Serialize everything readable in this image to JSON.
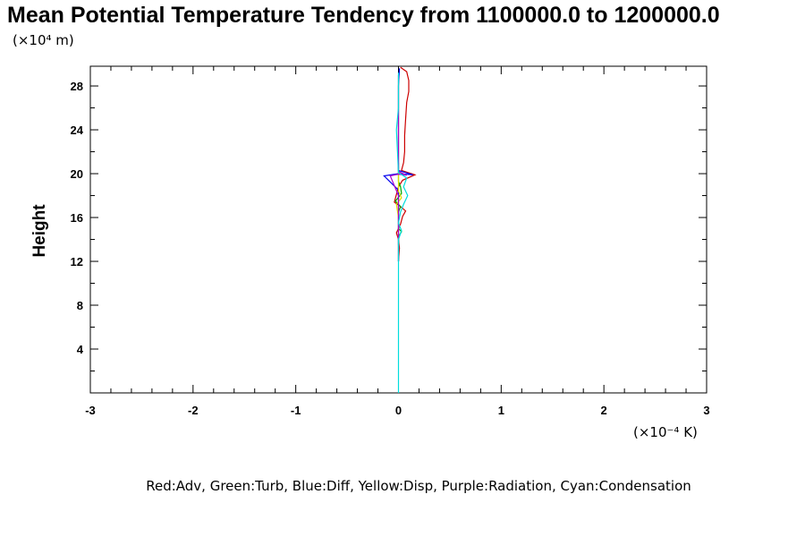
{
  "chart_data": {
    "type": "line",
    "title": "Mean Potential Temperature Tendency from 1100000.0 to 1200000.0",
    "xlabel": "",
    "ylabel": "Height",
    "x_unit_label": "(×10⁻⁴ K)",
    "y_unit_label": "(×10⁴ m)",
    "xlim": [
      -3,
      3
    ],
    "ylim": [
      0,
      29.8
    ],
    "x_ticks": [
      -3,
      -2,
      -1,
      0,
      1,
      2,
      3
    ],
    "x_tick_labels": [
      "-3",
      "-2",
      "-1",
      "0",
      "1",
      "2",
      "3"
    ],
    "y_ticks": [
      4,
      8,
      12,
      16,
      20,
      24,
      28
    ],
    "y_tick_labels": [
      "4",
      "8",
      "12",
      "16",
      "20",
      "24",
      "28"
    ],
    "grid": false,
    "legend_text": "Red:Adv, Green:Turb, Blue:Diff, Yellow:Disp, Purple:Radiation, Cyan:Condensation",
    "series": [
      {
        "name": "Adv",
        "color": "#cc0000",
        "points": [
          [
            0.0,
            12.0
          ],
          [
            0.01,
            13.2
          ],
          [
            0.0,
            14.0
          ],
          [
            -0.02,
            14.6
          ],
          [
            0.02,
            15.4
          ],
          [
            0.04,
            16.1
          ],
          [
            0.07,
            16.6
          ],
          [
            0.02,
            17.0
          ],
          [
            -0.04,
            17.4
          ],
          [
            -0.02,
            18.1
          ],
          [
            0.0,
            18.8
          ],
          [
            0.04,
            19.4
          ],
          [
            0.16,
            19.9
          ],
          [
            0.03,
            20.3
          ],
          [
            0.05,
            21.0
          ],
          [
            0.06,
            22.0
          ],
          [
            0.06,
            23.5
          ],
          [
            0.07,
            25.0
          ],
          [
            0.08,
            26.5
          ],
          [
            0.1,
            27.5
          ],
          [
            0.1,
            28.5
          ],
          [
            0.08,
            29.3
          ],
          [
            0.02,
            29.7
          ]
        ]
      },
      {
        "name": "Turb",
        "color": "#00aa00",
        "points": [
          [
            0.0,
            13.5
          ],
          [
            0.0,
            14.0
          ],
          [
            0.01,
            14.4
          ],
          [
            0.03,
            14.7
          ],
          [
            0.0,
            15.0
          ],
          [
            0.0,
            16.5
          ],
          [
            0.02,
            17.0
          ],
          [
            -0.03,
            17.5
          ],
          [
            0.03,
            18.2
          ],
          [
            0.02,
            18.8
          ],
          [
            0.0,
            19.3
          ],
          [
            0.0,
            19.8
          ],
          [
            0.0,
            21.0
          ]
        ]
      },
      {
        "name": "Diff",
        "color": "#0000ee",
        "points": [
          [
            0.0,
            12.0
          ],
          [
            0.0,
            15.0
          ],
          [
            0.0,
            18.5
          ],
          [
            -0.14,
            19.8
          ],
          [
            0.0,
            20.0
          ],
          [
            0.14,
            19.9
          ],
          [
            0.0,
            20.3
          ],
          [
            0.0,
            22.0
          ],
          [
            0.0,
            24.0
          ],
          [
            0.0,
            26.0
          ],
          [
            0.0,
            28.0
          ],
          [
            0.01,
            29.6
          ]
        ]
      },
      {
        "name": "Disp",
        "color": "#dddd00",
        "points": [
          [
            0.0,
            12.0
          ],
          [
            0.0,
            16.0
          ],
          [
            -0.02,
            17.2
          ],
          [
            0.03,
            17.8
          ],
          [
            0.0,
            18.4
          ],
          [
            0.0,
            20.0
          ],
          [
            0.0,
            24.0
          ],
          [
            0.0,
            29.0
          ]
        ]
      },
      {
        "name": "Radiation",
        "color": "#aa00cc",
        "points": [
          [
            0.0,
            12.0
          ],
          [
            0.0,
            18.0
          ],
          [
            -0.08,
            19.8
          ],
          [
            0.0,
            19.95
          ],
          [
            0.08,
            19.85
          ],
          [
            0.0,
            20.2
          ],
          [
            0.0,
            25.0
          ],
          [
            0.0,
            29.0
          ]
        ]
      },
      {
        "name": "Condensation",
        "color": "#00dddd",
        "points": [
          [
            0.0,
            0.0
          ],
          [
            0.0,
            4.0
          ],
          [
            0.0,
            8.0
          ],
          [
            0.0,
            12.0
          ],
          [
            0.0,
            14.0
          ],
          [
            0.03,
            14.8
          ],
          [
            0.0,
            15.5
          ],
          [
            0.02,
            16.5
          ],
          [
            0.05,
            17.2
          ],
          [
            0.09,
            18.0
          ],
          [
            0.05,
            18.8
          ],
          [
            0.08,
            19.6
          ],
          [
            0.0,
            20.1
          ],
          [
            -0.01,
            22.0
          ],
          [
            -0.02,
            24.0
          ],
          [
            0.0,
            26.0
          ],
          [
            0.0,
            29.2
          ]
        ]
      }
    ]
  }
}
